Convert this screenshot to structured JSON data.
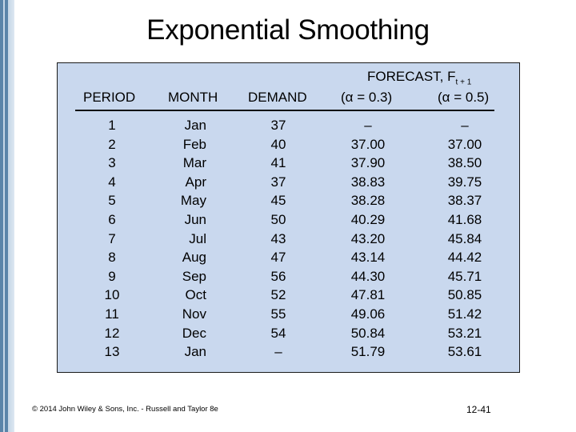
{
  "title": "Exponential Smoothing",
  "headers": {
    "period": "PERIOD",
    "month": "MONTH",
    "demand": "DEMAND",
    "forecast_prefix": "FORECAST, F",
    "forecast_sub": "t + 1",
    "alpha1": "(α = 0.3)",
    "alpha2": "(α = 0.5)"
  },
  "rows": [
    {
      "period": "1",
      "month": "Jan",
      "demand": "37",
      "f03": "–",
      "f05": "–"
    },
    {
      "period": "2",
      "month": "Feb",
      "demand": "40",
      "f03": "37.00",
      "f05": "37.00"
    },
    {
      "period": "3",
      "month": "Mar",
      "demand": "41",
      "f03": "37.90",
      "f05": "38.50"
    },
    {
      "period": "4",
      "month": "Apr",
      "demand": "37",
      "f03": "38.83",
      "f05": "39.75"
    },
    {
      "period": "5",
      "month": "May",
      "demand": "45",
      "f03": "38.28",
      "f05": "38.37"
    },
    {
      "period": "6",
      "month": "Jun",
      "demand": "50",
      "f03": "40.29",
      "f05": "41.68"
    },
    {
      "period": "7",
      "month": "Jul",
      "demand": "43",
      "f03": "43.20",
      "f05": "45.84"
    },
    {
      "period": "8",
      "month": "Aug",
      "demand": "47",
      "f03": "43.14",
      "f05": "44.42"
    },
    {
      "period": "9",
      "month": "Sep",
      "demand": "56",
      "f03": "44.30",
      "f05": "45.71"
    },
    {
      "period": "10",
      "month": "Oct",
      "demand": "52",
      "f03": "47.81",
      "f05": "50.85"
    },
    {
      "period": "11",
      "month": "Nov",
      "demand": "55",
      "f03": "49.06",
      "f05": "51.42"
    },
    {
      "period": "12",
      "month": "Dec",
      "demand": "54",
      "f03": "50.84",
      "f05": "53.21"
    },
    {
      "period": "13",
      "month": "Jan",
      "demand": "–",
      "f03": "51.79",
      "f05": "53.61"
    }
  ],
  "footer": "© 2014 John Wiley & Sons, Inc. - Russell and Taylor 8e",
  "page_number": "12-41"
}
